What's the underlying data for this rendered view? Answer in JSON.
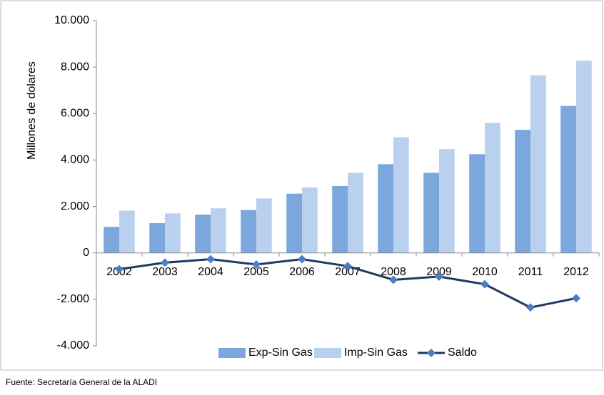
{
  "chart_data": {
    "type": "bar",
    "y_label": "Millones de dolares",
    "source": "Fuente: Secretaría General de la ALADI",
    "categories": [
      "2002",
      "2003",
      "2004",
      "2005",
      "2006",
      "2007",
      "2008",
      "2009",
      "2010",
      "2011",
      "2012"
    ],
    "series": [
      {
        "name": "Exp-Sin Gas",
        "type": "bar",
        "color": "#7ba7dc",
        "values": [
          1120,
          1280,
          1650,
          1850,
          2550,
          2880,
          3820,
          3450,
          4250,
          5300,
          6330
        ]
      },
      {
        "name": "Imp-Sin Gas",
        "type": "bar",
        "color": "#b9d1ef",
        "values": [
          1820,
          1700,
          1920,
          2350,
          2820,
          3450,
          4980,
          4470,
          5600,
          7650,
          8280
        ]
      },
      {
        "name": "Saldo",
        "type": "line",
        "color": "#1f3a60",
        "marker_color": "#4a7fc4",
        "values": [
          -700,
          -420,
          -270,
          -500,
          -270,
          -570,
          -1160,
          -1020,
          -1350,
          -2350,
          -1950
        ]
      }
    ],
    "ylim": [
      -4000,
      10000
    ],
    "yticks": [
      {
        "value": -4000,
        "label": "-4.000"
      },
      {
        "value": -2000,
        "label": "-2.000"
      },
      0,
      {
        "value": 2000,
        "label": "2.000"
      },
      {
        "value": 4000,
        "label": "4.000"
      },
      {
        "value": 6000,
        "label": "6.000"
      },
      {
        "value": 8000,
        "label": "8.000"
      },
      {
        "value": 10000,
        "label": "10.000"
      }
    ],
    "grid": false,
    "legend": "bottom"
  }
}
